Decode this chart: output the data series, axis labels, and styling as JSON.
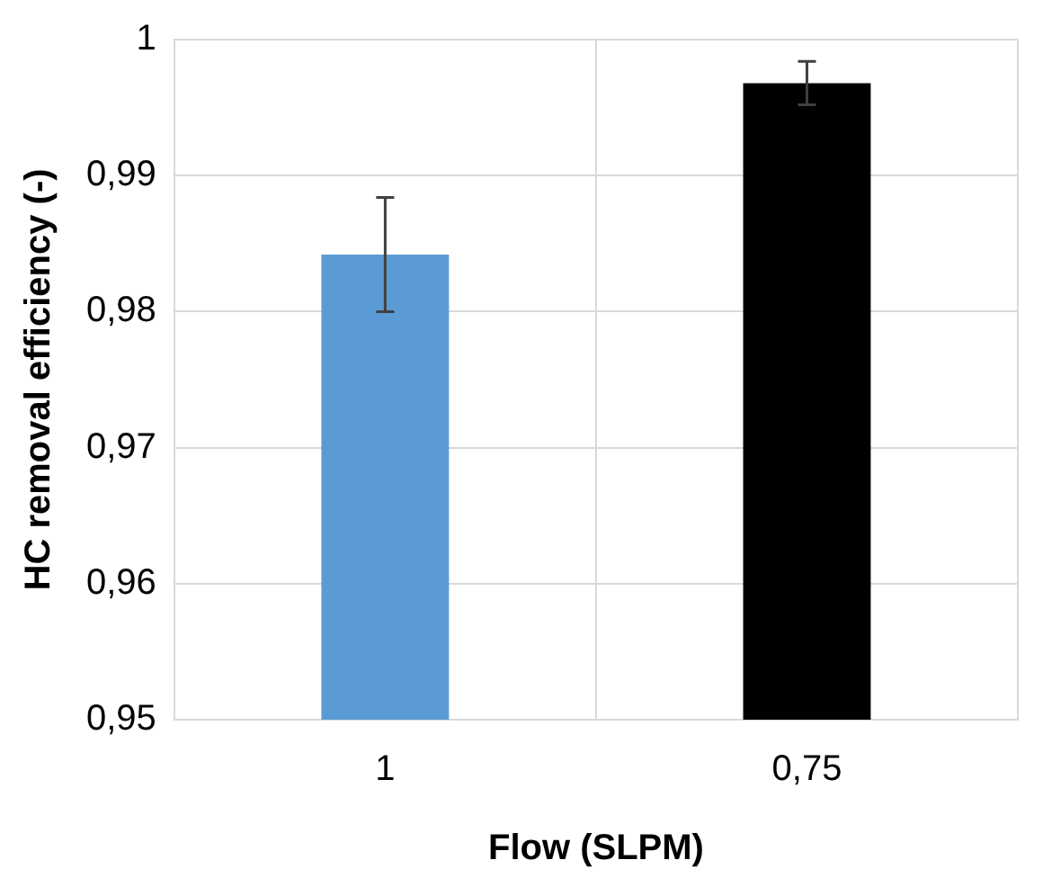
{
  "chart_data": {
    "type": "bar",
    "xlabel": "Flow (SLPM)",
    "ylabel": "HC removal efficiency (-)",
    "categories": [
      "1",
      "0,75"
    ],
    "values": [
      0.9842,
      0.9968
    ],
    "colors": [
      "#5b9bd5",
      "#000000"
    ],
    "errors": [
      0.0042,
      0.0016
    ],
    "ylim": [
      0.95,
      1
    ],
    "yticks": [
      {
        "value": 0.95,
        "label": "0,95"
      },
      {
        "value": 0.96,
        "label": "0,96"
      },
      {
        "value": 0.97,
        "label": "0,97"
      },
      {
        "value": 0.98,
        "label": "0,98"
      },
      {
        "value": 0.99,
        "label": "0,99"
      },
      {
        "value": 1,
        "label": "1"
      }
    ],
    "grid": true,
    "legend": false
  }
}
